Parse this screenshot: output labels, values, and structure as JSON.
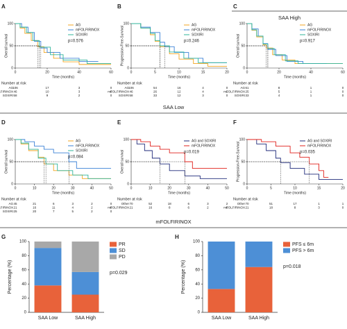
{
  "headers": [
    "SAA High",
    "SAA Low",
    "mFOLFIRINOX"
  ],
  "chart_data": [
    {
      "type": "km",
      "label": "A",
      "ylabel": "Overall survival",
      "xlabel": "Time (months)",
      "xlim": [
        0,
        60
      ],
      "xticks": [
        0,
        20,
        40,
        60
      ],
      "ylim": [
        0,
        100
      ],
      "yticks": [
        0,
        50,
        100
      ],
      "median_level": 50,
      "p_text": "p=0.576",
      "risk_title": "Number at risk",
      "series": [
        {
          "name": "AG",
          "color": "#f2a51f",
          "median": 14,
          "x": [
            0,
            3,
            3,
            6,
            6,
            10,
            10,
            14,
            14,
            18,
            18,
            24,
            24,
            30,
            30,
            40,
            40,
            60
          ],
          "values": [
            100,
            100,
            90,
            90,
            78,
            78,
            62,
            62,
            48,
            48,
            35,
            35,
            22,
            22,
            14,
            14,
            8,
            8
          ]
        },
        {
          "name": "mFOLFIRINOX",
          "color": "#3a80d6",
          "median": 16,
          "x": [
            0,
            4,
            4,
            8,
            8,
            12,
            12,
            16,
            16,
            20,
            20,
            28,
            28,
            40,
            40,
            52
          ],
          "values": [
            100,
            100,
            92,
            92,
            80,
            80,
            60,
            60,
            45,
            45,
            35,
            35,
            22,
            22,
            15,
            15
          ]
        },
        {
          "name": "SOXIRI",
          "color": "#2fb59a",
          "median": 15,
          "x": [
            0,
            3,
            3,
            7,
            7,
            11,
            11,
            15,
            15,
            22,
            22,
            30,
            30,
            45,
            45,
            60
          ],
          "values": [
            100,
            100,
            92,
            92,
            80,
            80,
            62,
            62,
            47,
            47,
            30,
            30,
            18,
            18,
            10,
            10
          ]
        }
      ],
      "risk": [
        {
          "name": "AG",
          "values": [
            106,
            17,
            3,
            0
          ]
        },
        {
          "name": "mFOLFIRINOX",
          "values": [
            46,
            10,
            3,
            0
          ]
        },
        {
          "name": "SOXIRI",
          "values": [
            58,
            9,
            2,
            0
          ]
        }
      ]
    },
    {
      "type": "km",
      "label": "B",
      "ylabel": "Progression-Free-Survival",
      "xlabel": "Time (months)",
      "xlim": [
        0,
        20
      ],
      "xticks": [
        0,
        5,
        10,
        15,
        20
      ],
      "ylim": [
        0,
        100
      ],
      "yticks": [
        0,
        50,
        100
      ],
      "median_level": 50,
      "p_text": "p=0.246",
      "risk_title": "Number at risk",
      "series": [
        {
          "name": "AG",
          "color": "#f2a51f",
          "median": 6,
          "x": [
            0,
            2,
            2,
            4,
            4,
            5,
            5,
            6,
            6,
            8,
            8,
            10,
            10,
            13,
            13,
            16,
            16,
            20
          ],
          "values": [
            100,
            100,
            90,
            90,
            75,
            75,
            60,
            60,
            48,
            48,
            32,
            32,
            20,
            20,
            10,
            10,
            4,
            4
          ]
        },
        {
          "name": "mFOLFIRINOX",
          "color": "#3a80d6",
          "median": 7,
          "x": [
            0,
            2,
            2,
            4,
            4,
            6,
            6,
            7,
            7,
            9,
            9,
            12,
            12,
            15,
            15,
            20
          ],
          "values": [
            100,
            100,
            92,
            92,
            80,
            80,
            58,
            58,
            48,
            48,
            35,
            35,
            22,
            22,
            12,
            12
          ]
        },
        {
          "name": "SOXIRI",
          "color": "#2fb59a",
          "median": 6,
          "x": [
            0,
            2,
            2,
            4,
            4,
            5,
            5,
            6,
            6,
            8,
            8,
            11,
            11,
            14,
            14,
            20
          ],
          "values": [
            100,
            100,
            90,
            90,
            78,
            78,
            62,
            62,
            50,
            50,
            36,
            36,
            22,
            22,
            12,
            12
          ]
        }
      ],
      "risk": [
        {
          "name": "AG",
          "values": [
            106,
            54,
            16,
            4,
            0
          ]
        },
        {
          "name": "mFOLFIRINOX",
          "values": [
            46,
            26,
            12,
            4,
            1
          ]
        },
        {
          "name": "SOXIRI",
          "values": [
            58,
            33,
            12,
            3,
            0
          ]
        }
      ]
    },
    {
      "type": "km",
      "label": "C",
      "ylabel": "Overall survival",
      "xlabel": "Time (months)",
      "xlim": [
        0,
        60
      ],
      "xticks": [
        0,
        20,
        40,
        60
      ],
      "ylim": [
        0,
        100
      ],
      "yticks": [
        0,
        50,
        100
      ],
      "median_level": 50,
      "p_text": "p=0.917",
      "risk_title": "Number at risk",
      "series": [
        {
          "name": "AG",
          "color": "#f2a51f",
          "median": 12,
          "x": [
            0,
            3,
            3,
            6,
            6,
            10,
            10,
            12,
            12,
            16,
            16,
            22,
            22,
            30,
            30,
            60
          ],
          "values": [
            100,
            100,
            85,
            85,
            70,
            70,
            52,
            52,
            45,
            45,
            30,
            30,
            18,
            18,
            10,
            10
          ]
        },
        {
          "name": "mFOLFIRINOX",
          "color": "#3a80d6",
          "median": 13,
          "x": [
            0,
            3,
            3,
            7,
            7,
            10,
            10,
            13,
            13,
            18,
            18,
            25,
            25,
            35,
            35,
            50
          ],
          "values": [
            100,
            100,
            88,
            88,
            72,
            72,
            55,
            55,
            42,
            42,
            28,
            28,
            15,
            15,
            10,
            10
          ]
        },
        {
          "name": "SOXIRI",
          "color": "#2fb59a",
          "median": 13,
          "x": [
            0,
            3,
            3,
            6,
            6,
            10,
            10,
            13,
            13,
            17,
            17,
            24,
            24,
            32,
            32,
            60
          ],
          "values": [
            100,
            100,
            86,
            86,
            72,
            72,
            54,
            54,
            44,
            44,
            30,
            30,
            16,
            16,
            10,
            10
          ]
        }
      ],
      "risk": [
        {
          "name": "AG",
          "values": [
            61,
            8,
            1,
            0
          ]
        },
        {
          "name": "mFOLFIRINOX",
          "values": [
            25,
            5,
            1,
            0
          ]
        },
        {
          "name": "SOXIRI",
          "values": [
            33,
            4,
            1,
            0
          ]
        }
      ]
    },
    {
      "type": "km",
      "label": "D",
      "ylabel": "Overall survival",
      "xlabel": "Time (months)",
      "xlim": [
        0,
        50
      ],
      "xticks": [
        0,
        10,
        20,
        30,
        40,
        50
      ],
      "ylim": [
        0,
        100
      ],
      "yticks": [
        0,
        50,
        100
      ],
      "median_level": 50,
      "p_text": "p=0.084",
      "risk_title": "Number at risk",
      "series": [
        {
          "name": "AG",
          "color": "#f2a51f",
          "median": 15,
          "x": [
            0,
            3,
            3,
            7,
            7,
            12,
            12,
            15,
            15,
            20,
            20,
            28,
            28,
            35,
            35,
            50
          ],
          "values": [
            100,
            100,
            90,
            90,
            75,
            75,
            60,
            60,
            45,
            45,
            30,
            30,
            20,
            20,
            12,
            12
          ]
        },
        {
          "name": "mFOLFIRINOX",
          "color": "#3a80d6",
          "median": 28,
          "x": [
            0,
            5,
            5,
            10,
            10,
            15,
            15,
            20,
            20,
            28,
            28,
            32,
            32,
            50
          ],
          "values": [
            100,
            100,
            95,
            95,
            85,
            85,
            78,
            78,
            70,
            70,
            50,
            50,
            35,
            35
          ]
        },
        {
          "name": "SOXIRI",
          "color": "#2fb59a",
          "median": 16,
          "x": [
            0,
            3,
            3,
            7,
            7,
            12,
            12,
            16,
            16,
            22,
            22,
            30,
            30,
            38,
            38,
            50
          ],
          "values": [
            100,
            100,
            92,
            92,
            78,
            78,
            58,
            58,
            45,
            45,
            30,
            30,
            20,
            20,
            12,
            12
          ]
        }
      ],
      "risk": [
        {
          "name": "AG",
          "values": [
            45,
            21,
            6,
            3,
            2,
            0
          ]
        },
        {
          "name": "mFOLFIRINOX",
          "values": [
            21,
            16,
            11,
            4,
            2,
            0
          ]
        },
        {
          "name": "SOXIRI",
          "values": [
            25,
            20,
            7,
            5,
            2,
            0
          ]
        }
      ]
    },
    {
      "type": "km",
      "label": "E",
      "ylabel": "Overall survival",
      "xlabel": "Time (months)",
      "xlim": [
        0,
        50
      ],
      "xticks": [
        0,
        10,
        20,
        30,
        40,
        50
      ],
      "ylim": [
        0,
        100
      ],
      "yticks": [
        0,
        50,
        100
      ],
      "median_level": 50,
      "p_text": "p=0.019",
      "risk_title": "Number at risk",
      "series": [
        {
          "name": "AG and SOXIRI",
          "color": "#1f2a7a",
          "median": 15,
          "x": [
            0,
            3,
            3,
            7,
            7,
            11,
            11,
            15,
            15,
            20,
            20,
            28,
            28,
            36,
            36,
            50
          ],
          "values": [
            100,
            100,
            90,
            90,
            75,
            75,
            58,
            58,
            45,
            45,
            30,
            30,
            18,
            18,
            12,
            12
          ]
        },
        {
          "name": "mFOLFIRINOX",
          "color": "#e0201b",
          "median": 28,
          "x": [
            0,
            5,
            5,
            10,
            10,
            15,
            15,
            20,
            20,
            28,
            28,
            32,
            32,
            50
          ],
          "values": [
            100,
            100,
            95,
            95,
            85,
            85,
            78,
            78,
            70,
            70,
            50,
            50,
            35,
            35
          ]
        }
      ],
      "risk": [
        {
          "name": "Other",
          "values": [
            70,
            52,
            18,
            6,
            3,
            2
          ]
        },
        {
          "name": "mFOLFIRINOX",
          "values": [
            21,
            16,
            8,
            6,
            2,
            0
          ]
        }
      ]
    },
    {
      "type": "km",
      "label": "F",
      "ylabel": "Progression-Free-Survival",
      "xlabel": "Time (months)",
      "xlim": [
        0,
        20
      ],
      "xticks": [
        0,
        5,
        10,
        15,
        20
      ],
      "ylim": [
        0,
        100
      ],
      "yticks": [
        0,
        50,
        100
      ],
      "median_level": 50,
      "p_text": "p=0.035",
      "risk_title": "Number at risk",
      "series": [
        {
          "name": "AG and SOXIRI",
          "color": "#1f2a7a",
          "median": 7,
          "x": [
            0,
            2,
            2,
            4,
            4,
            6,
            6,
            7,
            7,
            9,
            9,
            12,
            12,
            15,
            15,
            20
          ],
          "values": [
            100,
            100,
            90,
            90,
            75,
            75,
            58,
            58,
            48,
            48,
            35,
            35,
            22,
            22,
            10,
            10
          ]
        },
        {
          "name": "mFOLFIRINOX",
          "color": "#e0201b",
          "median": 13,
          "x": [
            0,
            3,
            3,
            6,
            6,
            9,
            9,
            11,
            11,
            13,
            13,
            15,
            15,
            16,
            16,
            17
          ],
          "values": [
            100,
            100,
            95,
            95,
            85,
            85,
            70,
            70,
            60,
            60,
            45,
            45,
            30,
            30,
            15,
            15
          ]
        }
      ],
      "risk": [
        {
          "name": "Other",
          "values": [
            70,
            51,
            17,
            1,
            1
          ]
        },
        {
          "name": "mFOLFIRINOX",
          "values": [
            21,
            18,
            8,
            3,
            0
          ]
        }
      ]
    },
    {
      "type": "stacked_bar",
      "label": "G",
      "ylabel": "Percentage (%)",
      "categories": [
        "SAA Low",
        "SAA High"
      ],
      "ylim": [
        0,
        100
      ],
      "yticks": [
        0,
        20,
        40,
        60,
        80,
        100
      ],
      "p_text": "p=0.029",
      "series": [
        {
          "name": "PR",
          "color": "#e8623a",
          "values": [
            38,
            25
          ]
        },
        {
          "name": "SD",
          "color": "#4d8fd6",
          "values": [
            53,
            32
          ]
        },
        {
          "name": "PD",
          "color": "#a8a8a8",
          "values": [
            9,
            43
          ]
        }
      ]
    },
    {
      "type": "stacked_bar",
      "label": "H",
      "ylabel": "Percentage (%)",
      "categories": [
        "SAA Low",
        "SAA High"
      ],
      "ylim": [
        0,
        100
      ],
      "yticks": [
        0,
        20,
        40,
        60,
        80,
        100
      ],
      "p_text": "p=0.018",
      "series": [
        {
          "name": "PFS ≤ 6m",
          "color": "#e8623a",
          "values": [
            33,
            64
          ]
        },
        {
          "name": "PFS > 6m",
          "color": "#4d8fd6",
          "values": [
            67,
            36
          ]
        }
      ]
    }
  ]
}
